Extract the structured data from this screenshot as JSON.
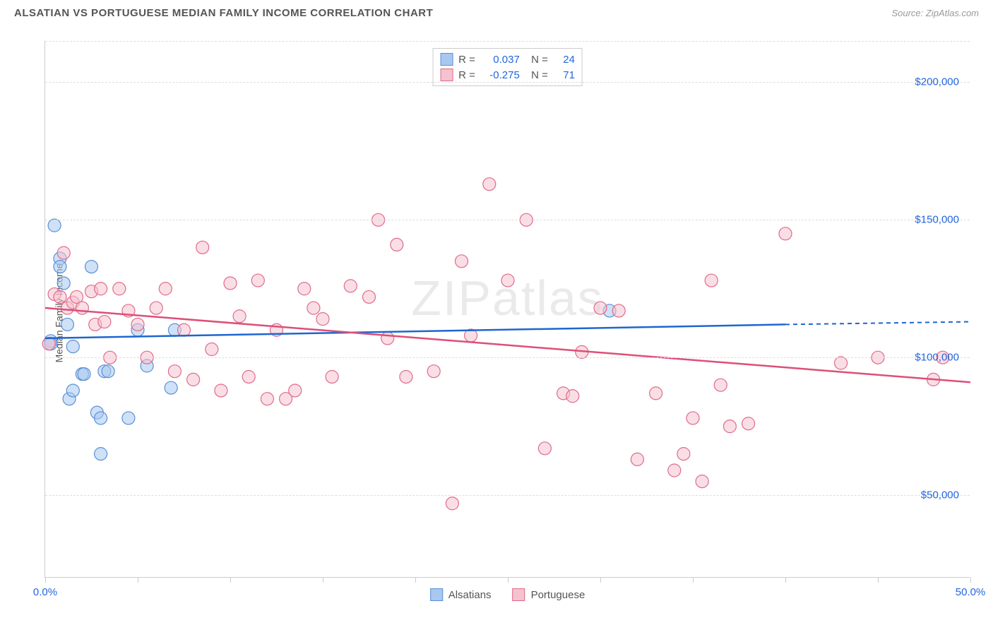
{
  "header": {
    "title": "ALSATIAN VS PORTUGUESE MEDIAN FAMILY INCOME CORRELATION CHART",
    "source": "Source: ZipAtlas.com"
  },
  "chart": {
    "type": "scatter",
    "ylabel": "Median Family Income",
    "watermark": "ZIPatlas",
    "xlim": [
      0,
      50
    ],
    "ylim": [
      20000,
      215000
    ],
    "x_axis_labels": [
      {
        "pos": 0,
        "label": "0.0%"
      },
      {
        "pos": 50,
        "label": "50.0%"
      }
    ],
    "x_ticks": [
      0,
      5,
      10,
      15,
      20,
      25,
      30,
      35,
      40,
      45,
      50
    ],
    "y_gridlines": [
      50000,
      100000,
      150000,
      200000
    ],
    "y_tick_labels": [
      "$50,000",
      "$100,000",
      "$150,000",
      "$200,000"
    ],
    "grid_color": "#dddddd",
    "axis_color": "#cccccc",
    "background_color": "#ffffff",
    "tick_label_color": "#2266dd",
    "marker_radius": 9,
    "marker_opacity": 0.55,
    "series": [
      {
        "name": "Alsatians",
        "fill_color": "#a8c8f0",
        "stroke_color": "#5b8fd6",
        "line_color": "#1e66d0",
        "r_value": "0.037",
        "n_value": "24",
        "trend": {
          "x1": 0,
          "y1": 107000,
          "x2": 40,
          "y2": 112000,
          "dash_from": 40,
          "dash_to": 50,
          "y_dash": 113000
        },
        "points": [
          [
            0.3,
            106000
          ],
          [
            0.3,
            105000
          ],
          [
            0.5,
            148000
          ],
          [
            0.8,
            136000
          ],
          [
            0.8,
            133000
          ],
          [
            1.0,
            127000
          ],
          [
            1.2,
            112000
          ],
          [
            1.5,
            104000
          ],
          [
            1.3,
            85000
          ],
          [
            1.5,
            88000
          ],
          [
            2.0,
            94000
          ],
          [
            2.1,
            94000
          ],
          [
            2.5,
            133000
          ],
          [
            2.8,
            80000
          ],
          [
            3.0,
            78000
          ],
          [
            3.2,
            95000
          ],
          [
            3.4,
            95000
          ],
          [
            3.0,
            65000
          ],
          [
            4.5,
            78000
          ],
          [
            5.0,
            110000
          ],
          [
            5.5,
            97000
          ],
          [
            6.8,
            89000
          ],
          [
            7.0,
            110000
          ],
          [
            30.5,
            117000
          ]
        ]
      },
      {
        "name": "Portuguese",
        "fill_color": "#f5c2cf",
        "stroke_color": "#e06b8a",
        "line_color": "#dd4f78",
        "r_value": "-0.275",
        "n_value": "71",
        "trend": {
          "x1": 0,
          "y1": 118000,
          "x2": 50,
          "y2": 91000
        },
        "points": [
          [
            0.2,
            105000
          ],
          [
            0.5,
            123000
          ],
          [
            0.8,
            122000
          ],
          [
            1.0,
            138000
          ],
          [
            1.2,
            118000
          ],
          [
            1.5,
            120000
          ],
          [
            1.7,
            122000
          ],
          [
            2.0,
            118000
          ],
          [
            2.5,
            124000
          ],
          [
            2.7,
            112000
          ],
          [
            3.0,
            125000
          ],
          [
            3.2,
            113000
          ],
          [
            3.5,
            100000
          ],
          [
            4.0,
            125000
          ],
          [
            4.5,
            117000
          ],
          [
            5.0,
            112000
          ],
          [
            5.5,
            100000
          ],
          [
            6.0,
            118000
          ],
          [
            6.5,
            125000
          ],
          [
            7.0,
            95000
          ],
          [
            7.5,
            110000
          ],
          [
            8.0,
            92000
          ],
          [
            8.5,
            140000
          ],
          [
            9.0,
            103000
          ],
          [
            9.5,
            88000
          ],
          [
            10.0,
            127000
          ],
          [
            10.5,
            115000
          ],
          [
            11.0,
            93000
          ],
          [
            11.5,
            128000
          ],
          [
            12.0,
            85000
          ],
          [
            12.5,
            110000
          ],
          [
            13.0,
            85000
          ],
          [
            13.5,
            88000
          ],
          [
            14.0,
            125000
          ],
          [
            14.5,
            118000
          ],
          [
            15.0,
            114000
          ],
          [
            15.5,
            93000
          ],
          [
            16.5,
            126000
          ],
          [
            17.5,
            122000
          ],
          [
            18.0,
            150000
          ],
          [
            18.5,
            107000
          ],
          [
            19.0,
            141000
          ],
          [
            19.5,
            93000
          ],
          [
            21.0,
            95000
          ],
          [
            22.0,
            47000
          ],
          [
            22.5,
            135000
          ],
          [
            23.0,
            108000
          ],
          [
            24.0,
            163000
          ],
          [
            25.0,
            128000
          ],
          [
            26.0,
            150000
          ],
          [
            27.0,
            67000
          ],
          [
            28.0,
            87000
          ],
          [
            28.5,
            86000
          ],
          [
            29.0,
            102000
          ],
          [
            30.0,
            118000
          ],
          [
            31.0,
            117000
          ],
          [
            32.0,
            63000
          ],
          [
            33.0,
            87000
          ],
          [
            34.0,
            59000
          ],
          [
            34.5,
            65000
          ],
          [
            35.0,
            78000
          ],
          [
            35.5,
            55000
          ],
          [
            36.0,
            128000
          ],
          [
            36.5,
            90000
          ],
          [
            37.0,
            75000
          ],
          [
            38.0,
            76000
          ],
          [
            40.0,
            145000
          ],
          [
            43.0,
            98000
          ],
          [
            45.0,
            100000
          ],
          [
            48.0,
            92000
          ],
          [
            48.5,
            100000
          ]
        ]
      }
    ],
    "legend_bottom": [
      {
        "label": "Alsatians",
        "fill": "#a8c8f0",
        "stroke": "#5b8fd6"
      },
      {
        "label": "Portuguese",
        "fill": "#f5c2cf",
        "stroke": "#e06b8a"
      }
    ]
  }
}
